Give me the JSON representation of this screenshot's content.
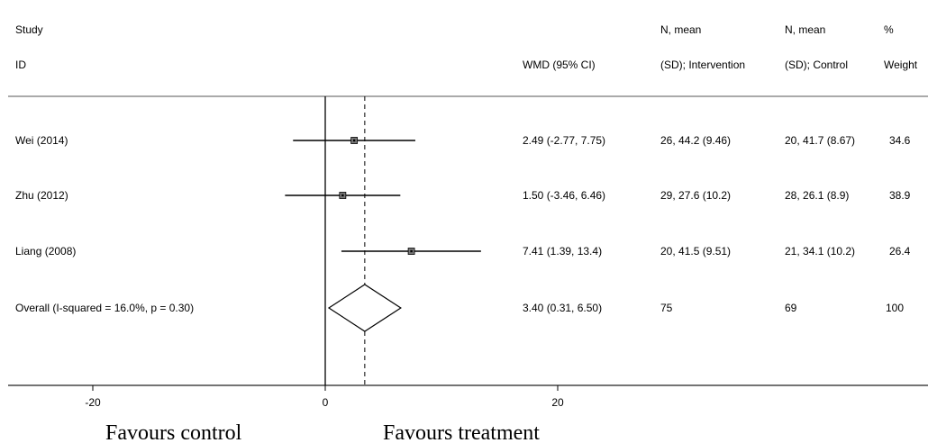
{
  "chart_data": {
    "type": "forest",
    "headers": {
      "study_line1": "Study",
      "study_line2": "ID",
      "wmd": "WMD (95% CI)",
      "int_line1": "N, mean",
      "int_line2": "(SD); Intervention",
      "ctrl_line1": "N, mean",
      "ctrl_line2": "(SD); Control",
      "weight_line1": "%",
      "weight_line2": "Weight"
    },
    "studies": [
      {
        "id": "Wei (2014)",
        "est": 2.49,
        "lo": -2.77,
        "hi": 7.75,
        "wmd_text": "2.49 (-2.77, 7.75)",
        "intervention": "26, 44.2 (9.46)",
        "control": "20, 41.7 (8.67)",
        "weight": "34.6"
      },
      {
        "id": "Zhu (2012)",
        "est": 1.5,
        "lo": -3.46,
        "hi": 6.46,
        "wmd_text": "1.50 (-3.46, 6.46)",
        "intervention": "29, 27.6 (10.2)",
        "control": "28, 26.1 (8.9)",
        "weight": "38.9"
      },
      {
        "id": "Liang (2008)",
        "est": 7.41,
        "lo": 1.39,
        "hi": 13.4,
        "wmd_text": "7.41 (1.39, 13.4)",
        "intervention": "20, 41.5 (9.51)",
        "control": "21, 34.1 (10.2)",
        "weight": "26.4"
      }
    ],
    "overall": {
      "id": "Overall  (I-squared = 16.0%, p = 0.30)",
      "est": 3.4,
      "lo": 0.31,
      "hi": 6.5,
      "wmd_text": "3.40 (0.31, 6.50)",
      "intervention": "75",
      "control": "69",
      "weight": "100"
    },
    "x_ticks": [
      -20,
      0,
      20
    ],
    "x_tick_labels": [
      "-20",
      "0",
      "20"
    ],
    "xlim": [
      -26.5,
      26.5
    ],
    "favours_left": "Favours control",
    "favours_right": "Favours treatment"
  }
}
